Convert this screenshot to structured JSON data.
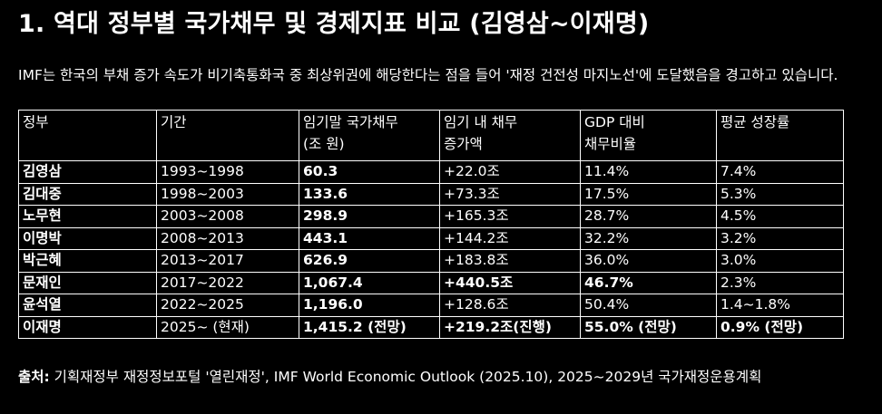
{
  "title": "1. 역대 정부별 국가채무 및 경제지표 비교 (김영삼~이재명)",
  "intro": "IMF는 한국의 부채 증가 속도가 비기축통화국 중 최상위권에 해당한다는 점을 들어 '재정 건전성 마지노선'에 도달했음을 경고하고 있습니다.",
  "table": {
    "headers": [
      [
        "정부"
      ],
      [
        "기간"
      ],
      [
        "임기말 국가채무",
        "(조 원)"
      ],
      [
        "임기 내 채무",
        "증가액"
      ],
      [
        "GDP 대비",
        "채무비율"
      ],
      [
        "평균 성장률"
      ]
    ],
    "rows": [
      [
        "김영삼",
        "1993~1998",
        "60.3",
        "+22.0조",
        "11.4%",
        "7.4%"
      ],
      [
        "김대중",
        "1998~2003",
        "133.6",
        "+73.3조",
        "17.5%",
        "5.3%"
      ],
      [
        "노무현",
        "2003~2008",
        "298.9",
        "+165.3조",
        "28.7%",
        "4.5%"
      ],
      [
        "이명박",
        "2008~2013",
        "443.1",
        "+144.2조",
        "32.2%",
        "3.2%"
      ],
      [
        "박근혜",
        "2013~2017",
        "626.9",
        "+183.8조",
        "36.0%",
        "3.0%"
      ],
      [
        "문재인",
        "2017~2022",
        "1,067.4",
        "+440.5조",
        "46.7%",
        "2.3%"
      ],
      [
        "윤석열",
        "2022~2025",
        "1,196.0",
        "+128.6조",
        "50.4%",
        "1.4~1.8%"
      ],
      [
        "이재명",
        "2025~ (현재)",
        "1,415.2 (전망)",
        "+219.2조(진행)",
        "55.0% (전망)",
        "0.9% (전망)"
      ]
    ]
  },
  "source": {
    "label": "출처:",
    "text": " 기획재정부 재정정보포털 '열린재정', IMF World Economic Outlook (2025.10), 2025~2029년 국가재정운용계획"
  }
}
